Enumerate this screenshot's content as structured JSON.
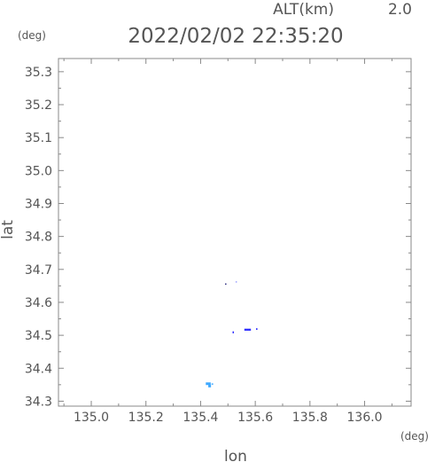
{
  "chart_data": {
    "type": "scatter",
    "altitude_label": "ALT(km)",
    "altitude_value": "2.0",
    "timestamp": "2022/02/02 22:35:20",
    "ylabel_unit": "(deg)",
    "xlabel_unit": "(deg)",
    "xlabel": "lon",
    "ylabel": "lat",
    "xlim": [
      134.88,
      136.17
    ],
    "ylim": [
      34.285,
      35.34
    ],
    "xticks": [
      "135.0",
      "135.2",
      "135.4",
      "135.6",
      "135.8",
      "136.0"
    ],
    "yticks": [
      "34.3",
      "34.4",
      "34.5",
      "34.6",
      "34.7",
      "34.8",
      "34.9",
      "35.0",
      "35.1",
      "35.2",
      "35.3"
    ],
    "grid": false,
    "points": [
      {
        "lon": 135.428,
        "lat": 34.353,
        "w": 0.018,
        "h": 0.008,
        "color": "#3fa9ff"
      },
      {
        "lon": 135.433,
        "lat": 34.346,
        "w": 0.01,
        "h": 0.008,
        "color": "#3fa9ff"
      },
      {
        "lon": 135.443,
        "lat": 34.352,
        "w": 0.006,
        "h": 0.004,
        "color": "#3fa9ff"
      },
      {
        "lon": 135.519,
        "lat": 34.509,
        "w": 0.004,
        "h": 0.006,
        "color": "#2a2aff"
      },
      {
        "lon": 135.572,
        "lat": 34.517,
        "w": 0.024,
        "h": 0.006,
        "color": "#2a2aff"
      },
      {
        "lon": 135.605,
        "lat": 34.519,
        "w": 0.004,
        "h": 0.005,
        "color": "#2a2aff"
      },
      {
        "lon": 135.491,
        "lat": 34.656,
        "w": 0.003,
        "h": 0.003,
        "color": "#2a2a7f"
      },
      {
        "lon": 135.529,
        "lat": 34.663,
        "w": 0.002,
        "h": 0.002,
        "color": "#9aa0ff"
      }
    ]
  }
}
